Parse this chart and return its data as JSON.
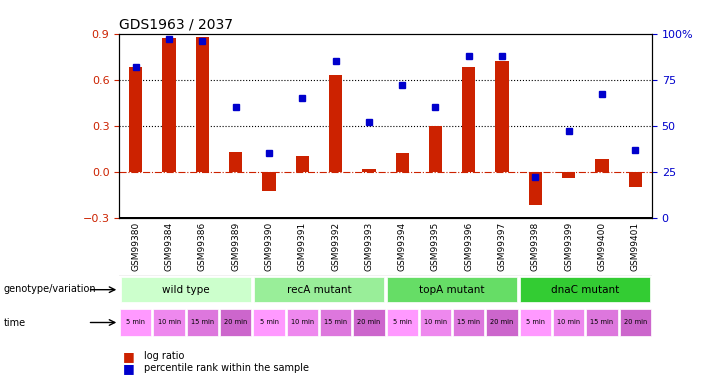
{
  "title": "GDS1963 / 2037",
  "samples": [
    "GSM99380",
    "GSM99384",
    "GSM99386",
    "GSM99389",
    "GSM99390",
    "GSM99391",
    "GSM99392",
    "GSM99393",
    "GSM99394",
    "GSM99395",
    "GSM99396",
    "GSM99397",
    "GSM99398",
    "GSM99399",
    "GSM99400",
    "GSM99401"
  ],
  "log_ratio": [
    0.68,
    0.87,
    0.88,
    0.13,
    -0.13,
    0.1,
    0.63,
    0.02,
    0.12,
    0.3,
    0.68,
    0.72,
    -0.22,
    -0.04,
    0.08,
    -0.1
  ],
  "percentile": [
    82,
    97,
    96,
    60,
    35,
    65,
    85,
    52,
    72,
    60,
    88,
    88,
    22,
    47,
    67,
    37
  ],
  "groups": [
    {
      "label": "wild type",
      "start": 0,
      "end": 4,
      "color": "#ccffcc"
    },
    {
      "label": "recA mutant",
      "start": 4,
      "end": 8,
      "color": "#99ee99"
    },
    {
      "label": "topA mutant",
      "start": 8,
      "end": 12,
      "color": "#66dd66"
    },
    {
      "label": "dnaC mutant",
      "start": 12,
      "end": 16,
      "color": "#33cc33"
    }
  ],
  "time_labels": [
    "5 min",
    "10 min",
    "15 min",
    "20 min",
    "5 min",
    "10 min",
    "15 min",
    "20 min",
    "5 min",
    "10 min",
    "15 min",
    "20 min",
    "5 min",
    "10 min",
    "15 min",
    "20 min"
  ],
  "time_colors": [
    "#ff99ff",
    "#ee88ee",
    "#dd77dd",
    "#cc66cc",
    "#ff99ff",
    "#ee88ee",
    "#dd77dd",
    "#cc66cc",
    "#ff99ff",
    "#ee88ee",
    "#dd77dd",
    "#cc66cc",
    "#ff99ff",
    "#ee88ee",
    "#dd77dd",
    "#cc66cc"
  ],
  "ylim_left": [
    -0.3,
    0.9
  ],
  "ylim_right": [
    0,
    100
  ],
  "bar_color": "#cc2200",
  "dot_color": "#0000cc",
  "hline_color": "#cc2200",
  "background_color": "#ffffff"
}
